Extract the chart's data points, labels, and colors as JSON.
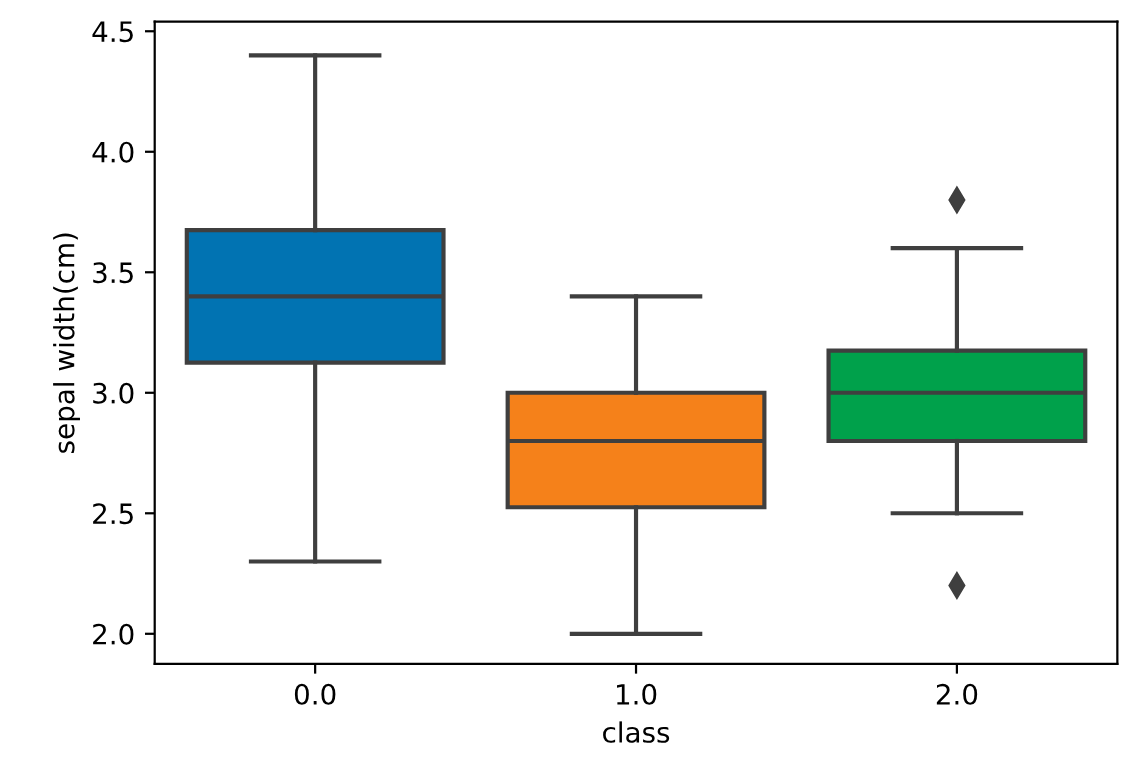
{
  "chart_data": {
    "type": "box",
    "xlabel": "class",
    "ylabel": "sepal width(cm)",
    "categories": [
      "0.0",
      "1.0",
      "2.0"
    ],
    "colors": [
      "#0173b2",
      "#f5811a",
      "#00a14b"
    ],
    "boxes": [
      {
        "low": 2.3,
        "q1": 3.125,
        "median": 3.4,
        "q3": 3.675,
        "high": 4.4
      },
      {
        "low": 2.0,
        "q1": 2.525,
        "median": 2.8,
        "q3": 3.0,
        "high": 3.4
      },
      {
        "low": 2.5,
        "q1": 2.8,
        "median": 3.0,
        "q3": 3.175,
        "high": 3.6,
        "outliers": [
          2.2,
          3.8
        ]
      }
    ],
    "ylim": [
      1.875,
      4.54
    ],
    "yticks": [
      {
        "value": 2.0,
        "label": "2.0"
      },
      {
        "value": 2.5,
        "label": "2.5"
      },
      {
        "value": 3.0,
        "label": "3.0"
      },
      {
        "value": 3.5,
        "label": "3.5"
      },
      {
        "value": 4.0,
        "label": "4.0"
      },
      {
        "value": 4.5,
        "label": "4.5"
      }
    ],
    "grid": false,
    "marker": "diamond"
  }
}
